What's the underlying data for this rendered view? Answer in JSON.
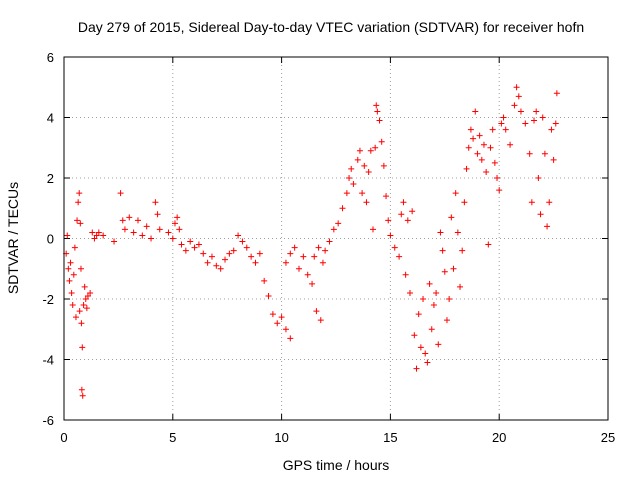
{
  "chart_data": {
    "type": "scatter",
    "title": "Day 279 of 2015, Sidereal Day-to-day VTEC variation (SDTVAR) for receiver hofn",
    "xlabel": "GPS time / hours",
    "ylabel": "SDTVAR / TECUs",
    "xlim": [
      0,
      25
    ],
    "ylim": [
      -6,
      6
    ],
    "xticks": [
      0,
      5,
      10,
      15,
      20,
      25
    ],
    "yticks": [
      -6,
      -4,
      -2,
      0,
      2,
      4,
      6
    ],
    "grid": true,
    "marker": "+",
    "color": "#ff0000",
    "series": [
      {
        "name": "SDTVAR",
        "points": [
          [
            0.1,
            -0.5
          ],
          [
            0.15,
            0.1
          ],
          [
            0.2,
            -1.0
          ],
          [
            0.25,
            -1.4
          ],
          [
            0.3,
            -0.8
          ],
          [
            0.35,
            -1.8
          ],
          [
            0.4,
            -2.2
          ],
          [
            0.45,
            -1.2
          ],
          [
            0.5,
            -0.3
          ],
          [
            0.55,
            -2.6
          ],
          [
            0.6,
            0.6
          ],
          [
            0.65,
            1.2
          ],
          [
            0.7,
            1.5
          ],
          [
            0.72,
            -2.4
          ],
          [
            0.75,
            0.5
          ],
          [
            0.78,
            -1.0
          ],
          [
            0.8,
            -2.8
          ],
          [
            0.82,
            -5.0
          ],
          [
            0.84,
            -3.6
          ],
          [
            0.86,
            -5.2
          ],
          [
            0.9,
            -2.2
          ],
          [
            0.95,
            -1.6
          ],
          [
            1.0,
            -2.0
          ],
          [
            1.05,
            -2.3
          ],
          [
            1.1,
            -1.9
          ],
          [
            1.2,
            -1.8
          ],
          [
            1.3,
            0.2
          ],
          [
            1.4,
            0.0
          ],
          [
            1.5,
            0.1
          ],
          [
            1.6,
            0.2
          ],
          [
            1.8,
            0.1
          ],
          [
            2.3,
            -0.1
          ],
          [
            2.6,
            1.5
          ],
          [
            2.7,
            0.6
          ],
          [
            2.8,
            0.3
          ],
          [
            3.0,
            0.7
          ],
          [
            3.2,
            0.2
          ],
          [
            3.4,
            0.6
          ],
          [
            3.6,
            0.1
          ],
          [
            3.8,
            0.4
          ],
          [
            4.0,
            0.0
          ],
          [
            4.2,
            1.2
          ],
          [
            4.3,
            0.8
          ],
          [
            4.4,
            0.3
          ],
          [
            4.8,
            0.2
          ],
          [
            5.0,
            0.0
          ],
          [
            5.1,
            0.5
          ],
          [
            5.2,
            0.7
          ],
          [
            5.3,
            0.3
          ],
          [
            5.4,
            -0.2
          ],
          [
            5.6,
            -0.4
          ],
          [
            5.8,
            -0.1
          ],
          [
            6.0,
            -0.3
          ],
          [
            6.2,
            -0.2
          ],
          [
            6.4,
            -0.5
          ],
          [
            6.6,
            -0.8
          ],
          [
            6.8,
            -0.6
          ],
          [
            7.0,
            -0.9
          ],
          [
            7.2,
            -1.0
          ],
          [
            7.4,
            -0.7
          ],
          [
            7.6,
            -0.5
          ],
          [
            7.8,
            -0.4
          ],
          [
            8.0,
            0.1
          ],
          [
            8.2,
            -0.1
          ],
          [
            8.4,
            -0.3
          ],
          [
            8.6,
            -0.6
          ],
          [
            8.8,
            -0.8
          ],
          [
            9.0,
            -0.5
          ],
          [
            9.2,
            -1.4
          ],
          [
            9.4,
            -1.9
          ],
          [
            9.6,
            -2.5
          ],
          [
            9.8,
            -2.8
          ],
          [
            10.0,
            -2.6
          ],
          [
            10.2,
            -3.0
          ],
          [
            10.4,
            -3.3
          ],
          [
            10.2,
            -0.8
          ],
          [
            10.4,
            -0.5
          ],
          [
            10.6,
            -0.3
          ],
          [
            10.8,
            -1.0
          ],
          [
            11.0,
            -0.6
          ],
          [
            11.2,
            -1.2
          ],
          [
            11.4,
            -1.5
          ],
          [
            11.6,
            -2.4
          ],
          [
            11.8,
            -2.7
          ],
          [
            11.5,
            -0.6
          ],
          [
            11.7,
            -0.3
          ],
          [
            11.9,
            -0.8
          ],
          [
            12.0,
            -0.4
          ],
          [
            12.2,
            -0.1
          ],
          [
            12.4,
            0.3
          ],
          [
            12.6,
            0.5
          ],
          [
            12.8,
            1.0
          ],
          [
            13.0,
            1.5
          ],
          [
            13.1,
            2.0
          ],
          [
            13.2,
            2.3
          ],
          [
            13.3,
            1.8
          ],
          [
            13.5,
            2.6
          ],
          [
            13.6,
            2.9
          ],
          [
            13.7,
            1.5
          ],
          [
            13.8,
            2.4
          ],
          [
            13.9,
            1.2
          ],
          [
            14.0,
            2.2
          ],
          [
            14.1,
            2.9
          ],
          [
            14.2,
            0.3
          ],
          [
            14.3,
            3.0
          ],
          [
            14.35,
            4.4
          ],
          [
            14.4,
            4.2
          ],
          [
            14.5,
            3.9
          ],
          [
            14.6,
            3.2
          ],
          [
            14.7,
            2.4
          ],
          [
            14.8,
            1.4
          ],
          [
            14.9,
            0.6
          ],
          [
            15.0,
            0.1
          ],
          [
            15.2,
            -0.3
          ],
          [
            15.4,
            -0.6
          ],
          [
            15.5,
            0.8
          ],
          [
            15.6,
            1.2
          ],
          [
            15.7,
            -1.2
          ],
          [
            15.8,
            0.6
          ],
          [
            15.9,
            -1.8
          ],
          [
            16.0,
            0.9
          ],
          [
            16.1,
            -3.2
          ],
          [
            16.2,
            -4.3
          ],
          [
            16.3,
            -2.5
          ],
          [
            16.4,
            -3.6
          ],
          [
            16.5,
            -2.0
          ],
          [
            16.6,
            -3.8
          ],
          [
            16.7,
            -4.1
          ],
          [
            16.8,
            -1.5
          ],
          [
            16.9,
            -3.0
          ],
          [
            17.0,
            -2.2
          ],
          [
            17.1,
            -1.8
          ],
          [
            17.2,
            -3.5
          ],
          [
            17.3,
            0.2
          ],
          [
            17.4,
            -0.4
          ],
          [
            17.5,
            -1.1
          ],
          [
            17.6,
            -2.7
          ],
          [
            17.7,
            -2.0
          ],
          [
            17.8,
            0.7
          ],
          [
            17.9,
            -1.0
          ],
          [
            18.0,
            1.5
          ],
          [
            18.1,
            0.2
          ],
          [
            18.2,
            -1.6
          ],
          [
            18.3,
            -0.4
          ],
          [
            18.4,
            1.2
          ],
          [
            18.5,
            2.3
          ],
          [
            18.6,
            3.0
          ],
          [
            18.7,
            3.6
          ],
          [
            18.8,
            3.3
          ],
          [
            18.9,
            4.2
          ],
          [
            19.0,
            2.8
          ],
          [
            19.1,
            3.4
          ],
          [
            19.2,
            2.6
          ],
          [
            19.3,
            3.1
          ],
          [
            19.4,
            2.2
          ],
          [
            19.5,
            -0.2
          ],
          [
            19.6,
            3.0
          ],
          [
            19.7,
            3.6
          ],
          [
            19.8,
            2.5
          ],
          [
            19.9,
            2.0
          ],
          [
            20.0,
            1.6
          ],
          [
            20.1,
            3.8
          ],
          [
            20.2,
            4.0
          ],
          [
            20.3,
            3.6
          ],
          [
            20.5,
            3.1
          ],
          [
            20.7,
            4.4
          ],
          [
            20.8,
            5.0
          ],
          [
            20.9,
            4.7
          ],
          [
            21.0,
            4.2
          ],
          [
            21.2,
            3.8
          ],
          [
            21.4,
            2.8
          ],
          [
            21.5,
            1.2
          ],
          [
            21.6,
            3.9
          ],
          [
            21.7,
            4.2
          ],
          [
            21.8,
            2.0
          ],
          [
            21.9,
            0.8
          ],
          [
            22.0,
            4.0
          ],
          [
            22.1,
            2.8
          ],
          [
            22.2,
            0.4
          ],
          [
            22.3,
            1.2
          ],
          [
            22.4,
            3.6
          ],
          [
            22.5,
            2.6
          ],
          [
            22.6,
            3.8
          ],
          [
            22.65,
            4.8
          ]
        ]
      }
    ]
  }
}
